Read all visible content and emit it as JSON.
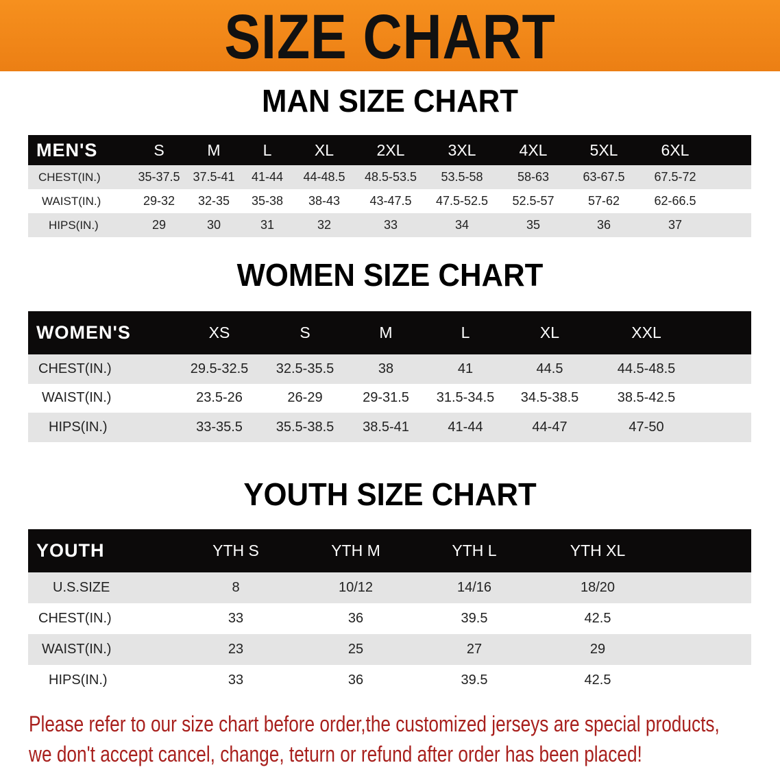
{
  "banner_title": "SIZE CHART",
  "men": {
    "title": "MAN SIZE CHART",
    "header_label": "MEN'S",
    "sizes": [
      "S",
      "M",
      "L",
      "XL",
      "2XL",
      "3XL",
      "4XL",
      "5XL",
      "6XL"
    ],
    "rows": [
      {
        "label": "CHEST(IN.)",
        "values": [
          "35-37.5",
          "37.5-41",
          "41-44",
          "44-48.5",
          "48.5-53.5",
          "53.5-58",
          "58-63",
          "63-67.5",
          "67.5-72"
        ]
      },
      {
        "label": "WAIST(IN.)",
        "values": [
          "29-32",
          "32-35",
          "35-38",
          "38-43",
          "43-47.5",
          "47.5-52.5",
          "52.5-57",
          "57-62",
          "62-66.5"
        ]
      },
      {
        "label": "HIPS(IN.)",
        "values": [
          "29",
          "30",
          "31",
          "32",
          "33",
          "34",
          "35",
          "36",
          "37"
        ]
      }
    ]
  },
  "women": {
    "title": "WOMEN SIZE CHART",
    "header_label": "WOMEN'S",
    "sizes": [
      "XS",
      "S",
      "M",
      "L",
      "XL",
      "XXL"
    ],
    "rows": [
      {
        "label": "CHEST(IN.)",
        "values": [
          "29.5-32.5",
          "32.5-35.5",
          "38",
          "41",
          "44.5",
          "44.5-48.5"
        ]
      },
      {
        "label": "WAIST(IN.)",
        "values": [
          "23.5-26",
          "26-29",
          "29-31.5",
          "31.5-34.5",
          "34.5-38.5",
          "38.5-42.5"
        ]
      },
      {
        "label": "HIPS(IN.)",
        "values": [
          "33-35.5",
          "35.5-38.5",
          "38.5-41",
          "41-44",
          "44-47",
          "47-50"
        ]
      }
    ]
  },
  "youth": {
    "title": "YOUTH SIZE CHART",
    "header_label": "YOUTH",
    "sizes": [
      "YTH S",
      "YTH M",
      "YTH L",
      "YTH XL"
    ],
    "rows": [
      {
        "label": "U.S.SIZE",
        "values": [
          "8",
          "10/12",
          "14/16",
          "18/20"
        ]
      },
      {
        "label": "CHEST(IN.)",
        "values": [
          "33",
          "36",
          "39.5",
          "42.5"
        ]
      },
      {
        "label": "WAIST(IN.)",
        "values": [
          "23",
          "25",
          "27",
          "29"
        ]
      },
      {
        "label": "HIPS(IN.)",
        "values": [
          "33",
          "36",
          "39.5",
          "42.5"
        ]
      }
    ]
  },
  "notice": [
    "Please refer to our size chart before order,the customized jerseys are special products,",
    "we don't accept cancel, change, teturn or refund after order has been placed!"
  ],
  "colors": {
    "banner": "#ee8418",
    "header": "#0c0a0a",
    "notice": "#a8201d",
    "row_alt": "#e4e4e4"
  }
}
